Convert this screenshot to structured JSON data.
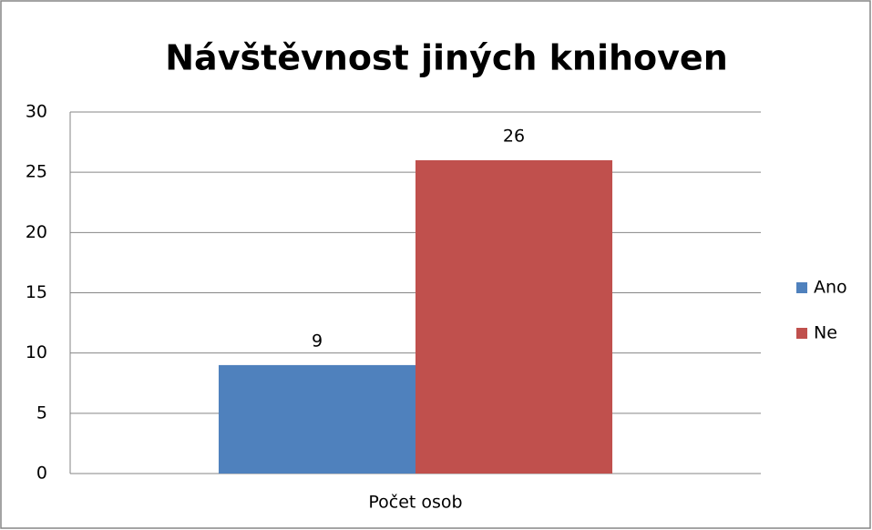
{
  "chart_data": {
    "type": "bar",
    "title": "Návštěvnost jiných knihoven",
    "categories": [
      "Počet osob"
    ],
    "series": [
      {
        "name": "Ano",
        "color": "#4f81bd",
        "values": [
          9
        ]
      },
      {
        "name": "Ne",
        "color": "#c0504d",
        "values": [
          26
        ]
      }
    ],
    "ylim": [
      0,
      30
    ],
    "yticks": [
      0,
      5,
      10,
      15,
      20,
      25,
      30
    ],
    "grid": true,
    "legend": "right"
  }
}
